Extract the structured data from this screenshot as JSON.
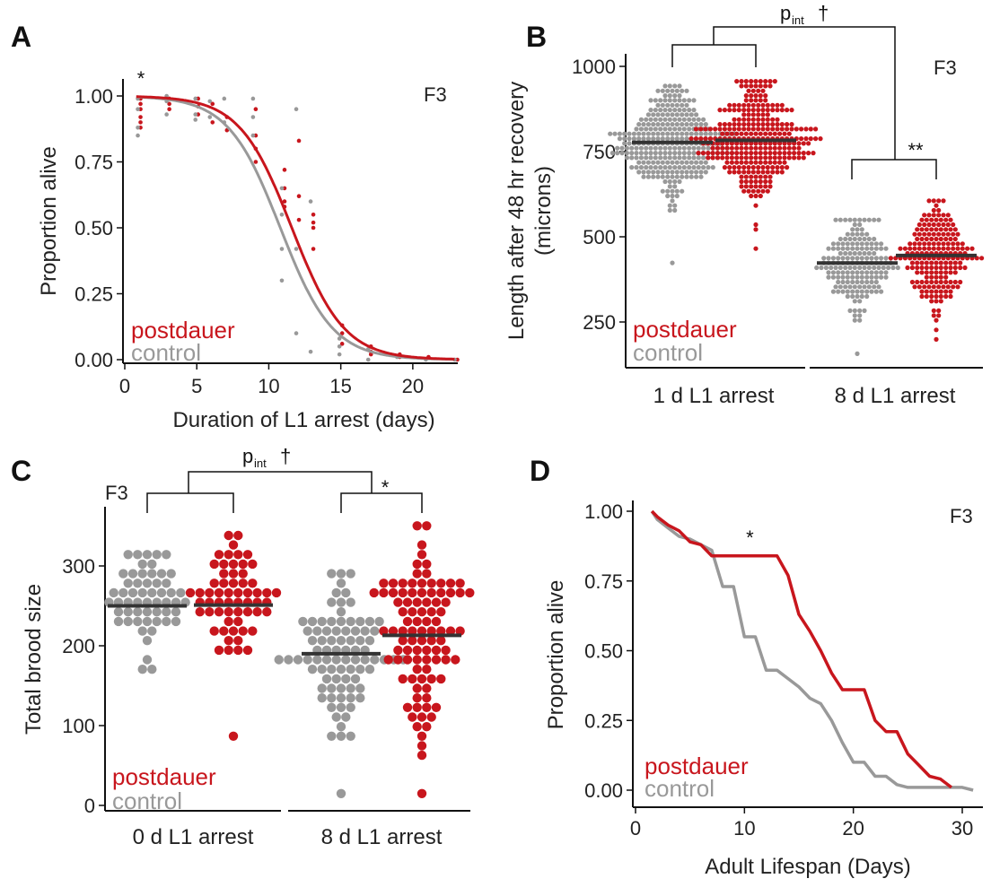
{
  "colors": {
    "postdauer": "#c8161d",
    "control": "#999999",
    "median": "#333333",
    "axis": "#111111"
  },
  "chart_data": [
    {
      "id": "A",
      "type": "scatter",
      "panel_label": "A",
      "generation_label": "F3",
      "xlabel": "Duration of L1 arrest (days)",
      "ylabel": "Proportion alive",
      "xlim": [
        0,
        23
      ],
      "ylim": [
        0,
        1.05
      ],
      "x_ticks": [
        0,
        5,
        10,
        15,
        20
      ],
      "x_tick_labels": [
        "0",
        "5",
        "10",
        "15",
        "20"
      ],
      "y_ticks": [
        0,
        0.25,
        0.5,
        0.75,
        1.0
      ],
      "y_tick_labels": [
        "0.00",
        "0.25",
        "0.50",
        "0.75",
        "1.00"
      ],
      "significance": "*",
      "significance_x": 1,
      "fit_curves": [
        {
          "name": "postdauer",
          "midpoint": 11.6,
          "slope": 0.55
        },
        {
          "name": "control",
          "midpoint": 10.8,
          "slope": 0.55
        }
      ],
      "series": [
        {
          "name": "postdauer",
          "x": [
            1,
            1,
            1,
            1,
            1,
            1,
            3,
            3,
            3,
            5,
            5,
            5,
            6,
            6,
            7,
            7,
            9,
            9,
            9,
            9,
            11,
            11,
            11,
            11,
            12,
            12,
            12,
            13,
            13,
            13,
            13,
            15,
            15,
            15,
            17,
            17,
            17,
            19,
            19,
            21,
            23
          ],
          "y": [
            0.99,
            0.97,
            0.95,
            0.92,
            0.9,
            0.88,
            0.99,
            0.97,
            0.95,
            0.99,
            0.96,
            0.93,
            0.97,
            0.9,
            0.92,
            0.87,
            0.95,
            0.85,
            0.8,
            0.75,
            0.72,
            0.65,
            0.6,
            0.58,
            0.83,
            0.62,
            0.53,
            0.55,
            0.52,
            0.5,
            0.42,
            0.13,
            0.1,
            0.06,
            0.05,
            0.03,
            0.02,
            0.02,
            0.01,
            0.01,
            0.0
          ]
        },
        {
          "name": "control",
          "x": [
            1,
            1,
            1,
            1,
            3,
            3,
            3,
            5,
            5,
            5,
            6,
            6,
            7,
            7,
            9,
            9,
            9,
            11,
            11,
            11,
            11,
            12,
            12,
            12,
            13,
            13,
            15,
            15,
            15,
            17,
            17,
            19,
            21,
            23
          ],
          "y": [
            0.99,
            0.95,
            0.88,
            0.85,
            1.0,
            0.98,
            0.93,
            0.99,
            0.93,
            0.91,
            0.98,
            0.92,
            0.99,
            0.9,
            0.99,
            0.92,
            0.85,
            0.65,
            0.55,
            0.42,
            0.3,
            0.95,
            0.42,
            0.1,
            0.6,
            0.03,
            0.08,
            0.05,
            0.02,
            0.04,
            0.0,
            0.01,
            0.0,
            0.0
          ]
        }
      ],
      "legend": [
        "postdauer",
        "control"
      ]
    },
    {
      "id": "B",
      "type": "scatter",
      "panel_label": "B",
      "generation_label": "F3",
      "xlabel": "",
      "ylabel": "Length after 48 hr recovery (microns)",
      "ylabel_lines": [
        "Length after 48 hr recovery",
        "(microns)"
      ],
      "ylim": [
        150,
        1000
      ],
      "y_ticks": [
        250,
        500,
        750,
        1000
      ],
      "y_tick_labels": [
        "250",
        "500",
        "750",
        "1000"
      ],
      "categories": [
        "1 d L1 arrest",
        "8 d L1 arrest"
      ],
      "pint_main": "p",
      "pint_sub": "int",
      "pint_dagger": "†",
      "significance": "**",
      "series": [
        {
          "name": "control",
          "medians": [
            777,
            423
          ],
          "ranges": [
            [
              420,
              945
            ],
            [
              160,
              550
            ]
          ],
          "counts": [
            320,
            180
          ],
          "sd": [
            75,
            70
          ]
        },
        {
          "name": "postdauer",
          "medians": [
            783,
            445
          ],
          "ranges": [
            [
              460,
              960
            ],
            [
              200,
              605
            ]
          ],
          "counts": [
            320,
            200
          ],
          "sd": [
            75,
            80
          ]
        }
      ],
      "legend": [
        "postdauer",
        "control"
      ]
    },
    {
      "id": "C",
      "type": "scatter",
      "panel_label": "C",
      "generation_label": "F3",
      "xlabel": "",
      "ylabel": "Total brood size",
      "ylim": [
        0,
        360
      ],
      "y_ticks": [
        0,
        100,
        200,
        300
      ],
      "y_tick_labels": [
        "0",
        "100",
        "200",
        "300"
      ],
      "categories": [
        "0 d L1 arrest",
        "8 d L1 arrest"
      ],
      "pint_main": "p",
      "pint_sub": "int",
      "pint_dagger": "†",
      "significance": "*",
      "series": [
        {
          "name": "control",
          "medians": [
            250,
            190
          ],
          "ranges": [
            [
              175,
              320
            ],
            [
              20,
              285
            ]
          ],
          "counts": [
            55,
            85
          ],
          "sd": [
            35,
            55
          ]
        },
        {
          "name": "postdauer",
          "medians": [
            251,
            213
          ],
          "ranges": [
            [
              88,
              340
            ],
            [
              15,
              355
            ]
          ],
          "counts": [
            60,
            95
          ],
          "sd": [
            45,
            60
          ]
        }
      ],
      "legend": [
        "postdauer",
        "control"
      ]
    },
    {
      "id": "D",
      "type": "line",
      "panel_label": "D",
      "generation_label": "F3",
      "xlabel": "Adult Lifespan (Days)",
      "ylabel": "Proportion alive",
      "xlim": [
        0,
        32
      ],
      "ylim": [
        0,
        1.05
      ],
      "x_ticks": [
        0,
        10,
        20,
        30
      ],
      "x_tick_labels": [
        "0",
        "10",
        "20",
        "30"
      ],
      "y_ticks": [
        0,
        0.25,
        0.5,
        0.75,
        1.0
      ],
      "y_tick_labels": [
        "0.00",
        "0.25",
        "0.50",
        "0.75",
        "1.00"
      ],
      "significance": "*",
      "significance_x": 10.5,
      "series": [
        {
          "name": "postdauer",
          "x": [
            1.5,
            2,
            3,
            4,
            5,
            6,
            7,
            8,
            9,
            10,
            11,
            12,
            13,
            14,
            15,
            16,
            17,
            18,
            19,
            20,
            21,
            22,
            23,
            24,
            25,
            26,
            27,
            28,
            29
          ],
          "y": [
            1.0,
            0.98,
            0.95,
            0.93,
            0.89,
            0.88,
            0.84,
            0.84,
            0.84,
            0.84,
            0.84,
            0.84,
            0.84,
            0.77,
            0.63,
            0.57,
            0.5,
            0.42,
            0.36,
            0.36,
            0.36,
            0.25,
            0.21,
            0.21,
            0.13,
            0.09,
            0.05,
            0.04,
            0.01
          ]
        },
        {
          "name": "control",
          "x": [
            1.5,
            2,
            3,
            4,
            5,
            6,
            7,
            8,
            9,
            10,
            11,
            12,
            13,
            14,
            15,
            16,
            17,
            18,
            19,
            20,
            21,
            22,
            23,
            24,
            25,
            26,
            27,
            28,
            29,
            30,
            31
          ],
          "y": [
            1.0,
            0.97,
            0.94,
            0.91,
            0.9,
            0.88,
            0.86,
            0.73,
            0.73,
            0.55,
            0.55,
            0.43,
            0.43,
            0.4,
            0.37,
            0.33,
            0.31,
            0.25,
            0.17,
            0.1,
            0.1,
            0.05,
            0.05,
            0.02,
            0.01,
            0.01,
            0.01,
            0.01,
            0.01,
            0.01,
            0.0
          ]
        }
      ],
      "legend": [
        "postdauer",
        "control"
      ]
    }
  ]
}
